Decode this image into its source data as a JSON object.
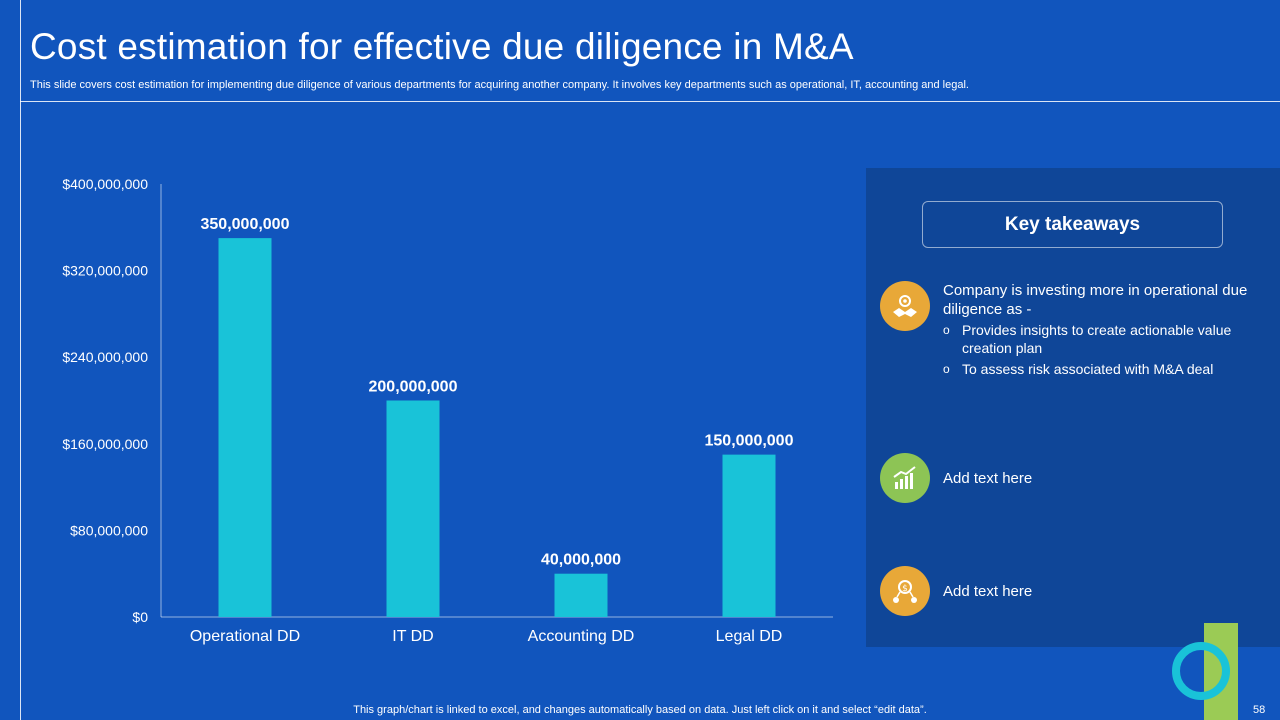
{
  "title": "Cost estimation for effective due diligence in M&A",
  "subtitle": "This slide covers cost estimation for implementing due diligence of various departments for acquiring another company. It involves key departments such as operational, IT, accounting and legal.",
  "chart_data": {
    "type": "bar",
    "title": "",
    "xlabel": "",
    "ylabel": "",
    "categories": [
      "Operational DD",
      "IT DD",
      "Accounting DD",
      "Legal DD"
    ],
    "values": [
      350000000,
      200000000,
      40000000,
      150000000
    ],
    "data_labels": [
      "350,000,000",
      "200,000,000",
      "40,000,000",
      "150,000,000"
    ],
    "ylim": [
      0,
      400000000
    ],
    "yticks": [
      0,
      80000000,
      160000000,
      240000000,
      320000000,
      400000000
    ],
    "ytick_labels": [
      "$0",
      "$80,000,000",
      "$160,000,000",
      "$240,000,000",
      "$320,000,000",
      "$400,000,000"
    ],
    "bar_color": "#19c3d8",
    "grid": false,
    "legend": "none"
  },
  "takeaways": {
    "heading": "Key takeaways",
    "items": [
      {
        "icon": "handshake-gear-icon",
        "text": "Company is investing more in operational due diligence as -",
        "bullets": [
          "Provides insights to create actionable value creation plan",
          "To assess risk associated with M&A deal"
        ],
        "color": "#e8a838"
      },
      {
        "icon": "growth-chart-icon",
        "text": "Add text here",
        "color": "#8dc455"
      },
      {
        "icon": "money-network-icon",
        "text": "Add text here",
        "color": "#e8a838"
      }
    ]
  },
  "bullet_marker": "o",
  "footer": "This graph/chart is linked to excel, and changes automatically based on data. Just left click on it and select “edit data”.",
  "page_number": "58",
  "colors": {
    "background": "#1155bd",
    "panel": "#0f4698",
    "bar": "#19c3d8",
    "accent_orange": "#e8a838",
    "accent_green": "#8dc455",
    "deco_ring": "#19c3d8",
    "deco_bar": "#9bcb55"
  }
}
